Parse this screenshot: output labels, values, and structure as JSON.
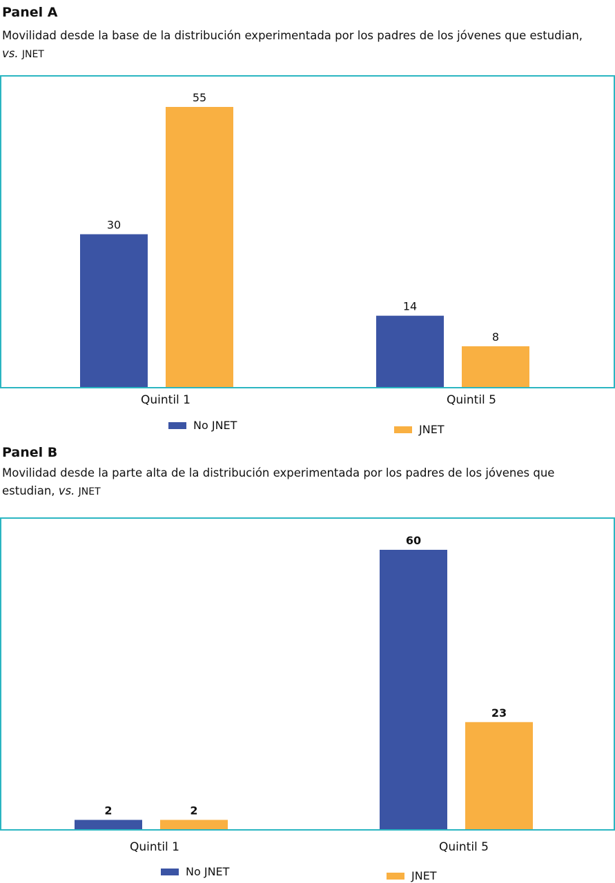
{
  "colors": {
    "no_jnet": "#3b54a4",
    "jnet": "#f9b042",
    "frame": "#2ab5c1"
  },
  "panel_a": {
    "heading": "Panel A",
    "subtitle_line1": "Movilidad desde la base de la distribución experimentada por los padres de los jóvenes que estudian,",
    "subtitle_vs": "vs.",
    "subtitle_jnet": "JNET"
  },
  "panel_b": {
    "heading": "Panel B",
    "subtitle_line1": "Movilidad desde la parte alta de la distribución experimentada por los padres de los jóvenes que",
    "subtitle_line2_start": "estudian,",
    "subtitle_vs": "vs.",
    "subtitle_jnet": "JNET"
  },
  "chart_data": [
    {
      "type": "bar",
      "categories": [
        "Quintil 1",
        "Quintil 5"
      ],
      "series": [
        {
          "name": "No JNET",
          "values": [
            30,
            14
          ]
        },
        {
          "name": "JNET",
          "values": [
            55,
            8
          ]
        }
      ],
      "ylim": [
        0,
        55
      ],
      "grid": false,
      "legend": "bottom",
      "title": "",
      "xlabel": "",
      "ylabel": ""
    },
    {
      "type": "bar",
      "categories": [
        "Quintil 1",
        "Quintil 5"
      ],
      "series": [
        {
          "name": "No JNET",
          "values": [
            2,
            60
          ]
        },
        {
          "name": "JNET",
          "values": [
            2,
            23
          ]
        }
      ],
      "ylim": [
        0,
        60
      ],
      "grid": false,
      "legend": "bottom",
      "title": "",
      "xlabel": "",
      "ylabel": ""
    }
  ]
}
